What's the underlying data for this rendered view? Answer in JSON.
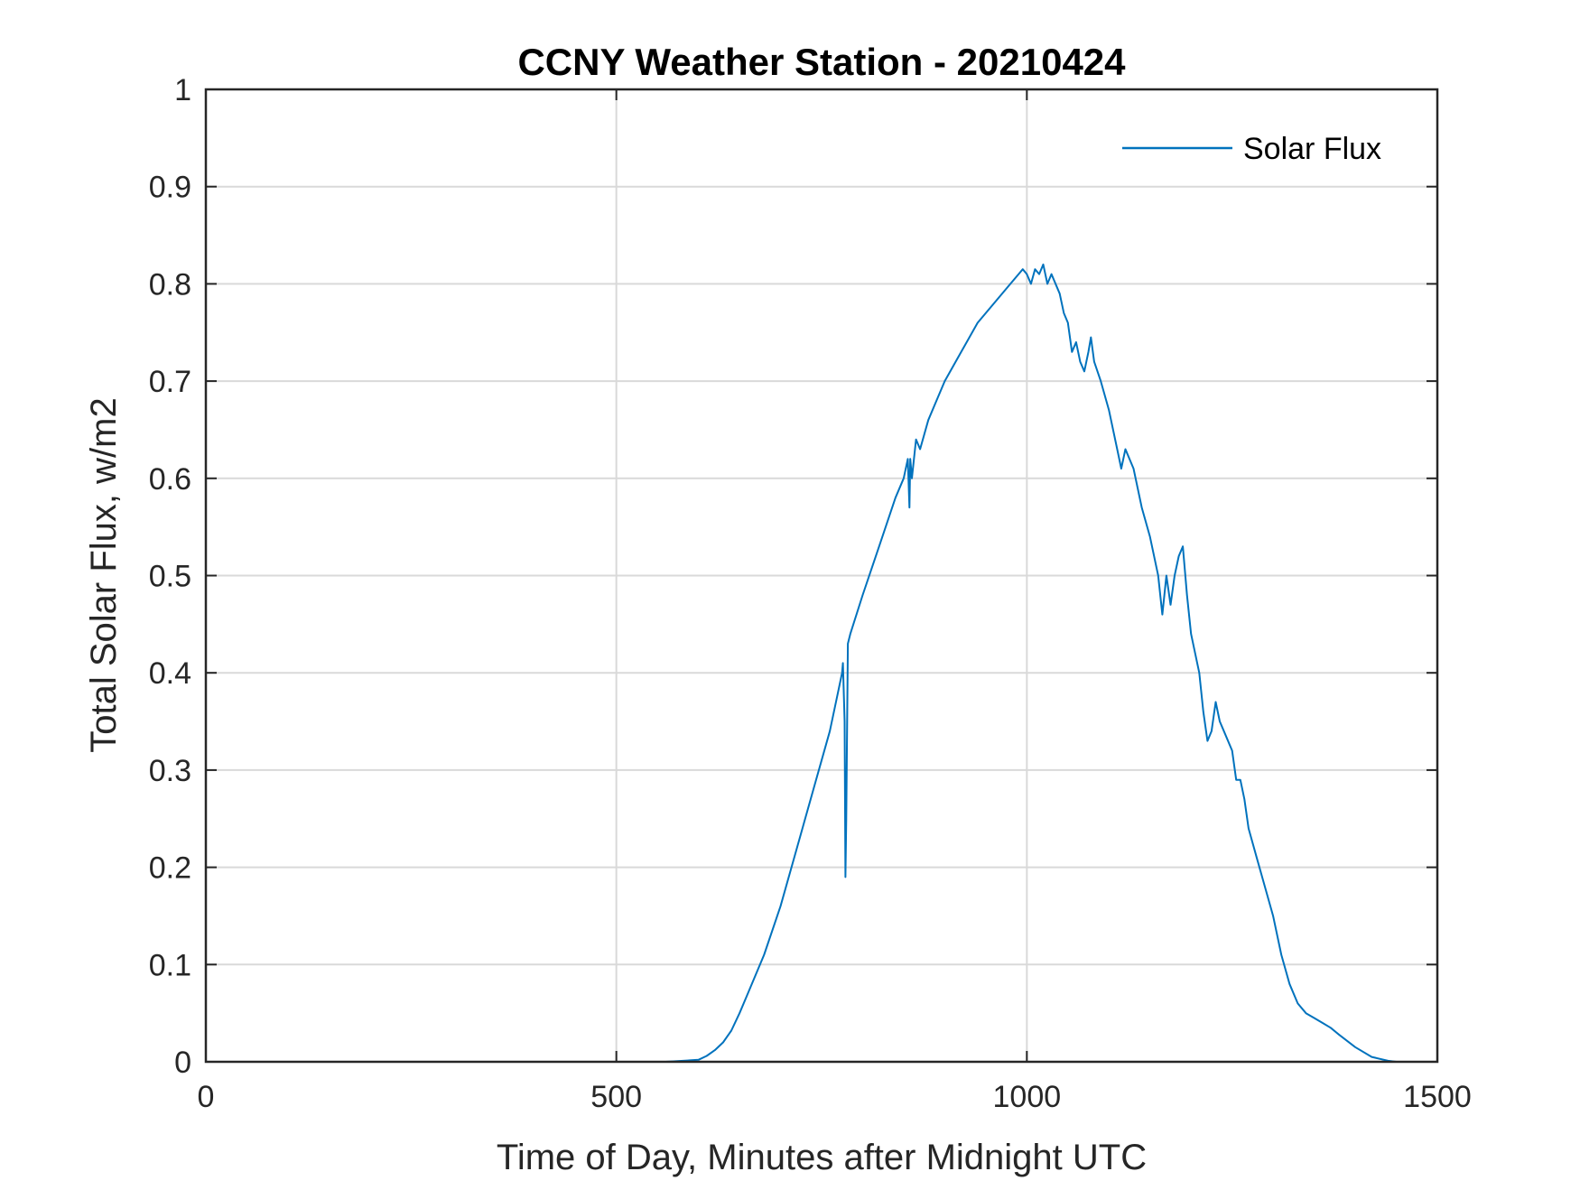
{
  "chart_data": {
    "type": "line",
    "title": "CCNY Weather Station - 20210424",
    "xlabel": "Time of Day, Minutes after Midnight UTC",
    "ylabel": "Total Solar Flux, w/m2",
    "xlim": [
      0,
      1500
    ],
    "ylim": [
      0,
      1
    ],
    "xticks": [
      0,
      500,
      1000,
      1500
    ],
    "xtick_labels": [
      "0",
      "500",
      "1000",
      "1500"
    ],
    "yticks": [
      0,
      0.1,
      0.2,
      0.3,
      0.4,
      0.5,
      0.6,
      0.7,
      0.8,
      0.9,
      1
    ],
    "ytick_labels": [
      "0",
      "0.1",
      "0.2",
      "0.3",
      "0.4",
      "0.5",
      "0.6",
      "0.7",
      "0.8",
      "0.9",
      "1"
    ],
    "grid": true,
    "legend_position": "top-right",
    "series": [
      {
        "name": "Solar Flux",
        "color": "#0072bd",
        "x": [
          0,
          100,
          200,
          300,
          400,
          500,
          560,
          600,
          610,
          620,
          630,
          640,
          650,
          660,
          680,
          700,
          720,
          740,
          760,
          770,
          775,
          776,
          778,
          779,
          780,
          782,
          785,
          800,
          820,
          840,
          850,
          855,
          857,
          858,
          860,
          865,
          870,
          880,
          890,
          900,
          920,
          940,
          960,
          980,
          990,
          995,
          1000,
          1005,
          1010,
          1015,
          1020,
          1025,
          1030,
          1040,
          1045,
          1050,
          1055,
          1060,
          1065,
          1070,
          1075,
          1078,
          1082,
          1090,
          1100,
          1110,
          1115,
          1120,
          1130,
          1140,
          1150,
          1160,
          1165,
          1170,
          1175,
          1180,
          1185,
          1190,
          1195,
          1200,
          1210,
          1215,
          1220,
          1225,
          1230,
          1235,
          1240,
          1250,
          1255,
          1260,
          1265,
          1270,
          1280,
          1290,
          1300,
          1310,
          1320,
          1330,
          1340,
          1350,
          1360,
          1370,
          1380,
          1400,
          1420,
          1440,
          1450
        ],
        "values": [
          0,
          0,
          0,
          0,
          0,
          0,
          0,
          0.002,
          0.006,
          0.012,
          0.02,
          0.032,
          0.05,
          0.07,
          0.11,
          0.16,
          0.22,
          0.28,
          0.34,
          0.38,
          0.4,
          0.41,
          0.35,
          0.19,
          0.25,
          0.43,
          0.44,
          0.48,
          0.53,
          0.58,
          0.6,
          0.62,
          0.57,
          0.62,
          0.6,
          0.64,
          0.63,
          0.66,
          0.68,
          0.7,
          0.73,
          0.76,
          0.78,
          0.8,
          0.81,
          0.815,
          0.81,
          0.8,
          0.815,
          0.81,
          0.82,
          0.8,
          0.81,
          0.79,
          0.77,
          0.76,
          0.73,
          0.74,
          0.72,
          0.71,
          0.73,
          0.745,
          0.72,
          0.7,
          0.67,
          0.63,
          0.61,
          0.63,
          0.61,
          0.57,
          0.54,
          0.5,
          0.46,
          0.5,
          0.47,
          0.5,
          0.52,
          0.53,
          0.48,
          0.44,
          0.4,
          0.36,
          0.33,
          0.34,
          0.37,
          0.35,
          0.34,
          0.32,
          0.29,
          0.29,
          0.27,
          0.24,
          0.21,
          0.18,
          0.15,
          0.11,
          0.08,
          0.06,
          0.05,
          0.045,
          0.04,
          0.035,
          0.028,
          0.015,
          0.005,
          0.001,
          0
        ]
      }
    ]
  }
}
